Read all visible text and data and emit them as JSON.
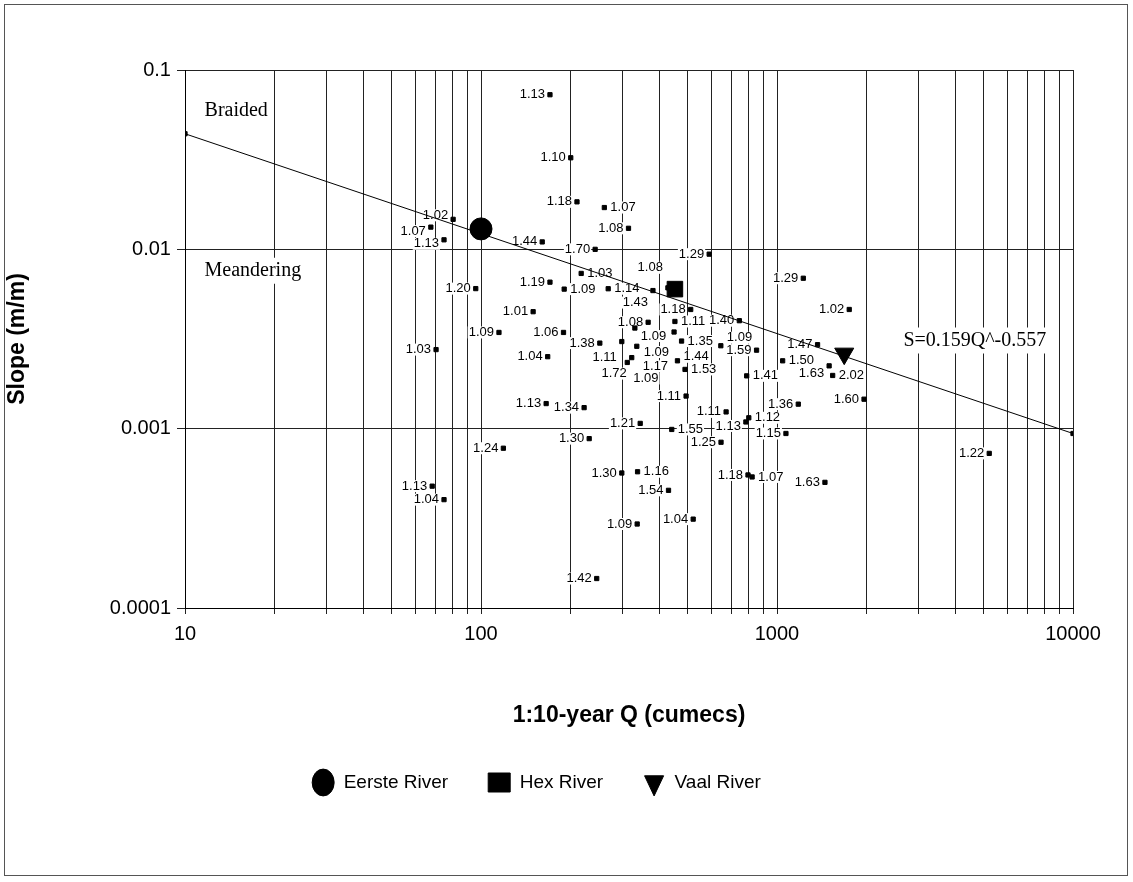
{
  "chart_data": {
    "type": "scatter",
    "xlabel": "1:10-year Q (cumecs)",
    "ylabel": "Slope (m/m)",
    "log": "xy",
    "grid": true,
    "legend": "bottom",
    "xlim": [
      10,
      10000
    ],
    "ylim": [
      0.0001,
      0.1
    ],
    "xticks": [
      10,
      {
        "value": 20,
        "label": null
      },
      {
        "value": 30,
        "label": null
      },
      {
        "value": 40,
        "label": null
      },
      {
        "value": 50,
        "label": null
      },
      {
        "value": 60,
        "label": null
      },
      {
        "value": 70,
        "label": null
      },
      {
        "value": 80,
        "label": null
      },
      {
        "value": 90,
        "label": null
      },
      100,
      {
        "value": 200,
        "label": null
      },
      {
        "value": 300,
        "label": null
      },
      {
        "value": 400,
        "label": null
      },
      {
        "value": 500,
        "label": null
      },
      {
        "value": 600,
        "label": null
      },
      {
        "value": 700,
        "label": null
      },
      {
        "value": 800,
        "label": null
      },
      {
        "value": 900,
        "label": null
      },
      1000,
      {
        "value": 2000,
        "label": null
      },
      {
        "value": 3000,
        "label": null
      },
      {
        "value": 4000,
        "label": null
      },
      {
        "value": 5000,
        "label": null
      },
      {
        "value": 6000,
        "label": null
      },
      {
        "value": 7000,
        "label": null
      },
      {
        "value": 8000,
        "label": null
      },
      {
        "value": 9000,
        "label": null
      },
      10000
    ],
    "yticks": [
      0.0001,
      0.001,
      0.01,
      0.1
    ],
    "annotations": [
      "Braided",
      "Meandering",
      "S=0.159Q^-0.557",
      {
        "text": "1.13",
        "x": 171,
        "y": 0.0728
      },
      {
        "text": "1.10",
        "x": 201,
        "y": 0.0324
      },
      {
        "text": "1.18",
        "x": 211,
        "y": 0.0184
      },
      {
        "text": "1.07",
        "x": 261,
        "y": 0.0171
      },
      {
        "text": "1.08",
        "x": 315,
        "y": 0.0131
      },
      {
        "text": "1.02",
        "x": 80.5,
        "y": 0.0147
      },
      {
        "text": "1.07",
        "x": 67.7,
        "y": 0.0133
      },
      {
        "text": "1.13",
        "x": 75,
        "y": 0.0113
      },
      {
        "text": "1.44",
        "x": 161,
        "y": 0.011
      },
      {
        "text": "1.70",
        "x": 243,
        "y": 0.01
      },
      {
        "text": "1.03",
        "x": 218,
        "y": 0.00734
      },
      {
        "text": "1.20",
        "x": 96,
        "y": 0.00604
      },
      {
        "text": "1.19",
        "x": 171,
        "y": 0.00656
      },
      {
        "text": "1.09",
        "x": 191,
        "y": 0.006
      },
      {
        "text": "1.14",
        "x": 269,
        "y": 0.00603
      },
      {
        "text": "1.43",
        "x": 381,
        "y": 0.00589
      },
      {
        "text": "1.08",
        "x": 428,
        "y": 0.0061
      },
      {
        "text": "1.01",
        "x": 150,
        "y": 0.00449
      },
      {
        "text": "1.09",
        "x": 115,
        "y": 0.00344
      },
      {
        "text": "1.06",
        "x": 190,
        "y": 0.00344
      },
      {
        "text": "1.04",
        "x": 168,
        "y": 0.00252
      },
      {
        "text": "1.03",
        "x": 70.5,
        "y": 0.00276
      },
      {
        "text": "1.13",
        "x": 166,
        "y": 0.00138
      },
      {
        "text": "1.24",
        "x": 119,
        "y": 0.000778
      },
      {
        "text": "1.18",
        "x": 511,
        "y": 0.00462
      },
      {
        "text": "1.40",
        "x": 746,
        "y": 0.004
      },
      {
        "text": "1.08",
        "x": 367,
        "y": 0.00392
      },
      {
        "text": "1.11",
        "x": 452,
        "y": 0.00396
      },
      {
        "text": "1.09",
        "x": 331,
        "y": 0.00364
      },
      {
        "text": "1.09",
        "x": 449,
        "y": 0.00346
      },
      {
        "text": "1.38",
        "x": 252,
        "y": 0.003
      },
      {
        "text": "1.11",
        "x": 299,
        "y": 0.00306
      },
      {
        "text": "1.17",
        "x": 336,
        "y": 0.00288
      },
      {
        "text": "1.72",
        "x": 323,
        "y": 0.00249
      },
      {
        "text": "1.09",
        "x": 312,
        "y": 0.00234
      },
      {
        "text": "1.35",
        "x": 476,
        "y": 0.00308
      },
      {
        "text": "1.44",
        "x": 461,
        "y": 0.00239
      },
      {
        "text": "1.53",
        "x": 489,
        "y": 0.00214
      },
      {
        "text": "1.09",
        "x": 646,
        "y": 0.0029
      },
      {
        "text": "1.59",
        "x": 853,
        "y": 0.00274
      },
      {
        "text": "1.50",
        "x": 1045,
        "y": 0.00239
      },
      {
        "text": "1.41",
        "x": 790,
        "y": 0.00197
      },
      {
        "text": "1.11",
        "x": 493,
        "y": 0.00152
      },
      {
        "text": "1.34",
        "x": 223,
        "y": 0.00131
      },
      {
        "text": "1.36",
        "x": 1180,
        "y": 0.00137
      },
      {
        "text": "1.11",
        "x": 673,
        "y": 0.00124
      },
      {
        "text": "1.12",
        "x": 803,
        "y": 0.00115
      },
      {
        "text": "1.13",
        "x": 785,
        "y": 0.00109
      },
      {
        "text": "1.21",
        "x": 345,
        "y": 0.00107
      },
      {
        "text": "1.55",
        "x": 441,
        "y": 0.00099
      },
      {
        "text": "1.30",
        "x": 232,
        "y": 0.00088
      },
      {
        "text": "1.25",
        "x": 647,
        "y": 0.00084
      },
      {
        "text": "1.15",
        "x": 1072,
        "y": 0.00094
      },
      {
        "text": "1.29",
        "x": 590,
        "y": 0.0094
      },
      {
        "text": "1.29",
        "x": 1227,
        "y": 0.0069
      },
      {
        "text": "1.02",
        "x": 1754,
        "y": 0.00462
      },
      {
        "text": "1.47",
        "x": 1371,
        "y": 0.00294
      },
      {
        "text": "1.63",
        "x": 1500,
        "y": 0.00224
      },
      {
        "text": "2.02",
        "x": 1542,
        "y": 0.00198
      },
      {
        "text": "1.60",
        "x": 1968,
        "y": 0.00146
      },
      {
        "text": "1.22",
        "x": 5212,
        "y": 0.000728
      },
      {
        "text": "1.63",
        "x": 1452,
        "y": 0.000502
      },
      {
        "text": "1.18",
        "x": 798,
        "y": 0.000552
      },
      {
        "text": "1.07",
        "x": 824,
        "y": 0.000538
      },
      {
        "text": "1.54",
        "x": 430,
        "y": 0.000453
      },
      {
        "text": "1.13",
        "x": 68.4,
        "y": 0.000478
      },
      {
        "text": "1.04",
        "x": 75,
        "y": 0.000402
      },
      {
        "text": "1.30",
        "x": 299,
        "y": 0.000566
      },
      {
        "text": "1.16",
        "x": 338,
        "y": 0.000575
      },
      {
        "text": "1.09",
        "x": 337,
        "y": 0.000294
      },
      {
        "text": "1.04",
        "x": 521,
        "y": 0.000313
      },
      {
        "text": "1.42",
        "x": 246,
        "y": 0.000146
      }
    ],
    "series": [
      {
        "type": "line",
        "x": [
          10,
          10000
        ],
        "values": [
          0.0441,
          0.00094
        ],
        "color": "#000000",
        "marker": "square",
        "line_style": "solid"
      },
      {
        "color": "#000000",
        "marker": "square",
        "x": [
          171,
          201,
          211,
          261,
          315,
          80.5,
          67.7,
          75,
          161,
          243,
          218,
          96,
          171,
          191,
          269,
          381,
          428,
          150,
          115,
          190,
          168,
          70.5,
          166,
          119,
          511,
          746,
          367,
          452,
          331,
          449,
          252,
          299,
          336,
          323,
          312,
          476,
          461,
          489,
          646,
          853,
          1045,
          790,
          493,
          223,
          1180,
          673,
          803,
          785,
          345,
          441,
          232,
          647,
          1072,
          590,
          1227,
          1754,
          1371,
          1500,
          1542,
          1968,
          5212,
          1452,
          798,
          824,
          430,
          68.4,
          75,
          299,
          338,
          337,
          521,
          246
        ],
        "values": [
          0.0728,
          0.0324,
          0.0184,
          0.0171,
          0.0131,
          0.0147,
          0.0133,
          0.0113,
          0.011,
          0.01,
          0.00734,
          0.00604,
          0.00656,
          0.006,
          0.00603,
          0.00589,
          0.0061,
          0.00449,
          0.00344,
          0.00344,
          0.00252,
          0.00276,
          0.00138,
          0.000778,
          0.00462,
          0.004,
          0.00392,
          0.00396,
          0.00364,
          0.00346,
          0.003,
          0.00306,
          0.00288,
          0.00249,
          0.00234,
          0.00308,
          0.00239,
          0.00214,
          0.0029,
          0.00274,
          0.00239,
          0.00197,
          0.00152,
          0.00131,
          0.00137,
          0.00124,
          0.00115,
          0.00109,
          0.00107,
          0.00099,
          0.00088,
          0.00084,
          0.00094,
          0.0094,
          0.0069,
          0.00462,
          0.00294,
          0.00224,
          0.00198,
          0.00146,
          0.000728,
          0.000502,
          0.000552,
          0.000538,
          0.000453,
          0.000478,
          0.000402,
          0.000566,
          0.000575,
          0.000294,
          0.000313,
          0.000146
        ]
      },
      {
        "name": "Eerste River",
        "color": "#000000",
        "marker": "circle",
        "x": [
          100
        ],
        "values": [
          0.013
        ]
      },
      {
        "name": "Hex River",
        "color": "#000000",
        "marker": "square",
        "x": [
          452
        ],
        "values": [
          0.006
        ]
      },
      {
        "name": "Vaal River",
        "color": "#000000",
        "marker": "triangle",
        "x": [
          1687
        ],
        "values": [
          0.00262
        ]
      }
    ]
  }
}
